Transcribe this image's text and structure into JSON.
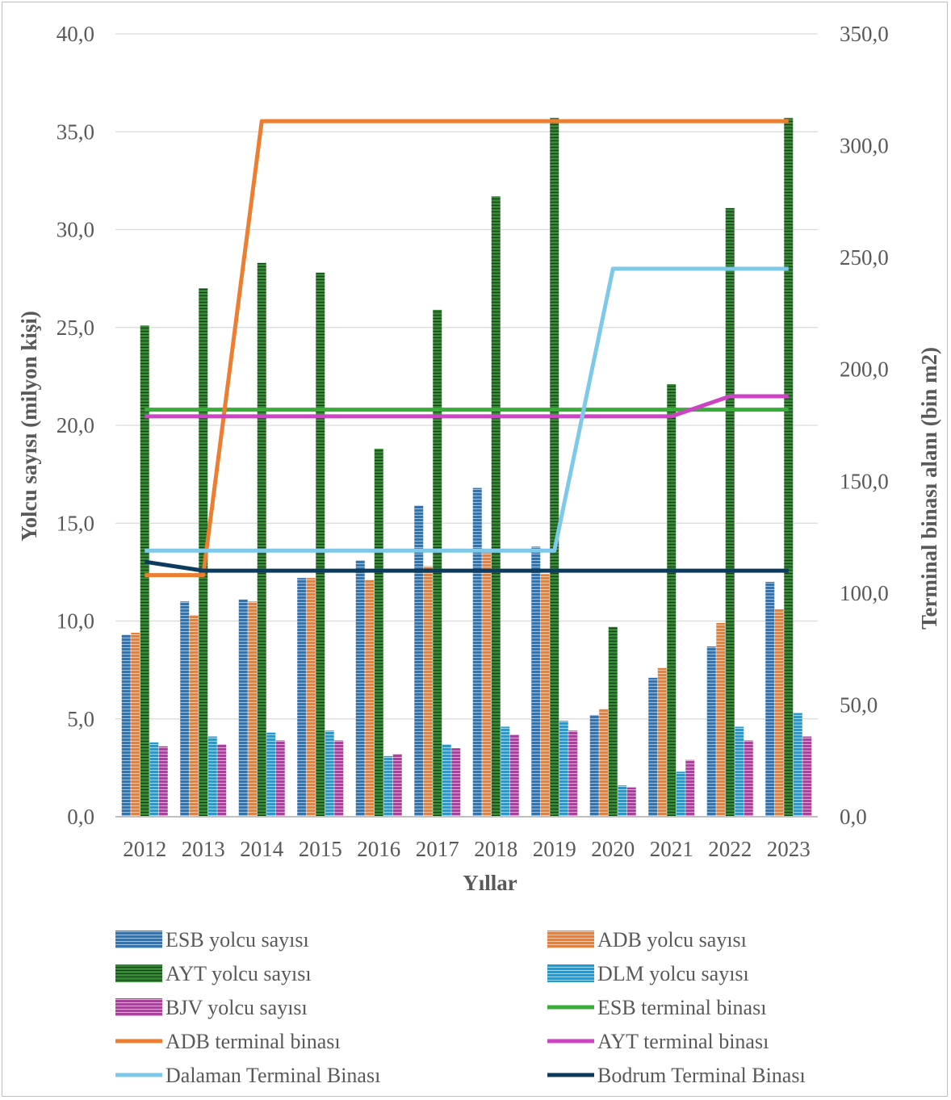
{
  "chart_data": {
    "type": "bar",
    "title": "",
    "xlabel": "Yıllar",
    "ylabel": "Yolcu sayısı (milyon kişi)",
    "y2label": "Terminal binası alanı (bin m2)",
    "ylim": [
      0,
      40
    ],
    "y2lim": [
      0,
      350
    ],
    "yticks": [
      "0,0",
      "5,0",
      "10,0",
      "15,0",
      "20,0",
      "25,0",
      "30,0",
      "35,0",
      "40,0"
    ],
    "y2ticks": [
      "0,0",
      "50,0",
      "100,0",
      "150,0",
      "200,0",
      "250,0",
      "300,0",
      "350,0"
    ],
    "grid": true,
    "legend_position": "bottom",
    "categories": [
      "2012",
      "2013",
      "2014",
      "2015",
      "2016",
      "2017",
      "2018",
      "2019",
      "2020",
      "2021",
      "2022",
      "2023"
    ],
    "series": [
      {
        "name": "ESB yolcu sayısı",
        "kind": "bar",
        "axis": "left",
        "color": "#2e75b6",
        "values": [
          9.3,
          11.0,
          11.1,
          12.2,
          13.1,
          15.9,
          16.8,
          13.8,
          5.2,
          7.1,
          8.7,
          12.0
        ]
      },
      {
        "name": "ADB yolcu sayısı",
        "kind": "bar",
        "axis": "left",
        "color": "#ed7d31",
        "values": [
          9.4,
          10.3,
          11.0,
          12.2,
          12.1,
          12.8,
          13.5,
          12.4,
          5.5,
          7.6,
          9.9,
          10.6
        ]
      },
      {
        "name": "AYT yolcu sayısı",
        "kind": "bar",
        "axis": "left",
        "color": "#339933",
        "values": [
          25.1,
          27.0,
          28.3,
          27.8,
          18.8,
          25.9,
          31.7,
          35.7,
          9.7,
          22.1,
          31.1,
          35.7
        ]
      },
      {
        "name": "DLM yolcu sayısı",
        "kind": "bar",
        "axis": "left",
        "color": "#1f9bd8",
        "values": [
          3.8,
          4.1,
          4.3,
          4.4,
          3.1,
          3.7,
          4.6,
          4.9,
          1.6,
          2.3,
          4.6,
          5.3
        ]
      },
      {
        "name": "BJV yolcu sayısı",
        "kind": "bar",
        "axis": "left",
        "color": "#b13aa3",
        "values": [
          3.6,
          3.7,
          3.9,
          3.9,
          3.2,
          3.5,
          4.2,
          4.4,
          1.5,
          2.9,
          3.9,
          4.1
        ]
      },
      {
        "name": "ESB terminal binası",
        "kind": "line",
        "axis": "right",
        "color": "#3aac3a",
        "values": [
          182,
          182,
          182,
          182,
          182,
          182,
          182,
          182,
          182,
          182,
          182,
          182
        ]
      },
      {
        "name": "ADB terminal binası",
        "kind": "line",
        "axis": "right",
        "color": "#ed7d31",
        "values": [
          108,
          108,
          311,
          311,
          311,
          311,
          311,
          311,
          311,
          311,
          311,
          311
        ]
      },
      {
        "name": "AYT terminal binası",
        "kind": "line",
        "axis": "right",
        "color": "#cc44c4",
        "values": [
          179,
          179,
          179,
          179,
          179,
          179,
          179,
          179,
          179,
          179,
          188,
          188
        ]
      },
      {
        "name": "Dalaman Terminal Binası",
        "kind": "line",
        "axis": "right",
        "color": "#7ec8ea",
        "values": [
          119,
          119,
          119,
          119,
          119,
          119,
          119,
          119,
          245,
          245,
          245,
          245
        ]
      },
      {
        "name": "Bodrum Terminal Binası",
        "kind": "line",
        "axis": "right",
        "color": "#0d3b5e",
        "values": [
          114,
          110,
          110,
          110,
          110,
          110,
          110,
          110,
          110,
          110,
          110,
          110
        ]
      }
    ]
  }
}
